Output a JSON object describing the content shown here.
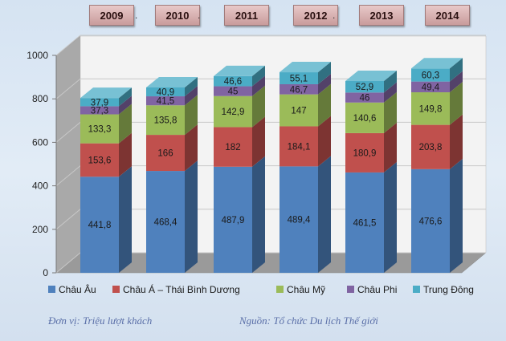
{
  "chart_data": {
    "type": "bar",
    "stacked": true,
    "categories": [
      "2009",
      "2010",
      "2011",
      "2012",
      "2013",
      "2014"
    ],
    "series": [
      {
        "name": "Châu Âu",
        "color": "#4f81bd",
        "values": [
          441.8,
          468.4,
          487.9,
          489.4,
          461.5,
          476.6
        ]
      },
      {
        "name": "Châu Á – Thái Bình Dương",
        "color": "#c0504d",
        "values": [
          153.6,
          166,
          182,
          184.1,
          180.9,
          203.8
        ]
      },
      {
        "name": "Châu Mỹ",
        "color": "#9bbb59",
        "values": [
          133.3,
          135.8,
          142.9,
          147,
          140.6,
          149.8
        ]
      },
      {
        "name": "Châu Phi",
        "color": "#8064a2",
        "values": [
          37.3,
          41.5,
          45,
          46.7,
          46,
          49.4
        ]
      },
      {
        "name": "Trung Đông",
        "color": "#4bacc6",
        "values": [
          37.9,
          40.9,
          46.6,
          55.1,
          52.9,
          60.3
        ]
      }
    ],
    "value_labels": [
      [
        "441,8",
        "468,4",
        "487,9",
        "489,4",
        "461,5",
        "476,6"
      ],
      [
        "153,6",
        "166",
        "182",
        "184,1",
        "180,9",
        "203,8"
      ],
      [
        "133,3",
        "135,8",
        "142,9",
        "147",
        "140,6",
        "149,8"
      ],
      [
        "37,3",
        "41,5",
        "45",
        "46,7",
        "46",
        "49,4"
      ],
      [
        "37,9",
        "40,9",
        "46,6",
        "55,1",
        "52,9",
        "60,3"
      ]
    ],
    "ylim": [
      0,
      1000
    ],
    "yticks": [
      0,
      200,
      400,
      600,
      800,
      1000
    ],
    "grid": true,
    "legend_position": "bottom"
  },
  "footer": {
    "unit": "Đơn vị: Triệu lượt khách",
    "source": "Nguồn: Tổ chức Du lịch Thế giới"
  },
  "separators": [
    ".",
    ".",
    "."
  ]
}
